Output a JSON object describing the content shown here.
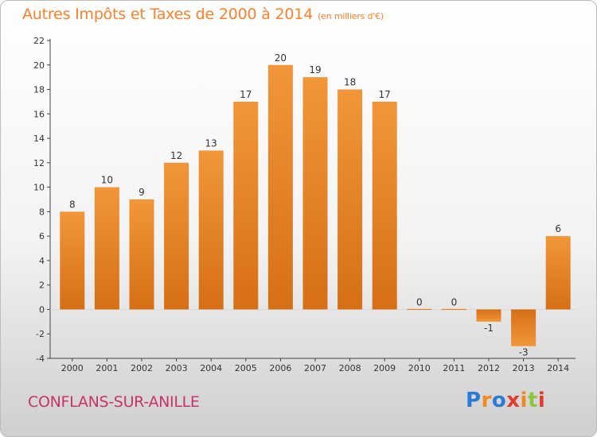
{
  "title": "Autres Impôts et Taxes de 2000 à 2014",
  "unit_note": "(en milliers d'€)",
  "commune": "CONFLANS-SUR-ANILLE",
  "logo": {
    "text": "Proxiti",
    "letter_colors": [
      "#2b7bd6",
      "#f08a1c",
      "#2b7bd6",
      "#e23b2e",
      "#f08a1c",
      "#8dc63f",
      "#e23b2e"
    ]
  },
  "colors": {
    "bar": "#f2963a",
    "bar_dark": "#d66f16",
    "title": "#ff7f2a",
    "commune": "#c8336b"
  },
  "chart_data": {
    "type": "bar",
    "categories": [
      "2000",
      "2001",
      "2002",
      "2003",
      "2004",
      "2005",
      "2006",
      "2007",
      "2008",
      "2009",
      "2010",
      "2011",
      "2012",
      "2013",
      "2014"
    ],
    "values": [
      8,
      10,
      9,
      12,
      13,
      17,
      20,
      19,
      18,
      17,
      0,
      0,
      -1,
      -3,
      6
    ],
    "ylim": [
      -4,
      22
    ],
    "yticks": [
      -4,
      -2,
      0,
      2,
      4,
      6,
      8,
      10,
      12,
      14,
      16,
      18,
      20,
      22
    ],
    "grid": false,
    "legend": "none"
  }
}
